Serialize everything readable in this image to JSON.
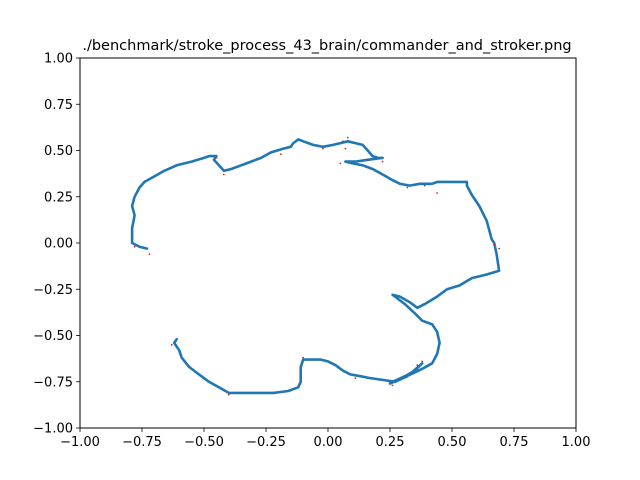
{
  "chart_data": {
    "type": "line",
    "title": "./benchmark/stroke_process_43_brain/commander_and_stroker.png",
    "xlabel": "",
    "ylabel": "",
    "xlim": [
      -1.0,
      1.0
    ],
    "ylim": [
      -1.0,
      1.0
    ],
    "xticks": [
      -1.0,
      -0.75,
      -0.5,
      -0.25,
      0.0,
      0.25,
      0.5,
      0.75,
      1.0
    ],
    "yticks": [
      -1.0,
      -0.75,
      -0.5,
      -0.25,
      0.0,
      0.25,
      0.5,
      0.75,
      1.0
    ],
    "xtick_labels": [
      "−1.00",
      "−0.75",
      "−0.50",
      "−0.25",
      "0.00",
      "0.25",
      "0.50",
      "0.75",
      "1.00"
    ],
    "ytick_labels": [
      "−1.00",
      "−0.75",
      "−0.50",
      "−0.25",
      "0.00",
      "0.25",
      "0.50",
      "0.75",
      "1.00"
    ],
    "grid": false,
    "colors": {
      "stroke": "#1f77b4",
      "points": "#d62728"
    },
    "series": [
      {
        "points": [
          [
            -0.73,
            -0.03
          ],
          [
            -0.76,
            -0.02
          ],
          [
            -0.79,
            0.0
          ],
          [
            -0.79,
            0.08
          ],
          [
            -0.78,
            0.15
          ],
          [
            -0.79,
            0.2
          ],
          [
            -0.78,
            0.25
          ],
          [
            -0.76,
            0.3
          ],
          [
            -0.74,
            0.33
          ],
          [
            -0.7,
            0.36
          ],
          [
            -0.66,
            0.39
          ],
          [
            -0.61,
            0.42
          ],
          [
            -0.55,
            0.44
          ],
          [
            -0.5,
            0.46
          ],
          [
            -0.48,
            0.47
          ],
          [
            -0.45,
            0.47
          ],
          [
            -0.46,
            0.45
          ],
          [
            -0.44,
            0.42
          ],
          [
            -0.42,
            0.39
          ],
          [
            -0.39,
            0.4
          ],
          [
            -0.35,
            0.42
          ],
          [
            -0.31,
            0.44
          ],
          [
            -0.27,
            0.46
          ],
          [
            -0.23,
            0.49
          ],
          [
            -0.18,
            0.51
          ],
          [
            -0.15,
            0.52
          ],
          [
            -0.14,
            0.54
          ],
          [
            -0.13,
            0.55
          ],
          [
            -0.12,
            0.56
          ],
          [
            -0.1,
            0.55
          ],
          [
            -0.06,
            0.53
          ],
          [
            -0.02,
            0.52
          ],
          [
            0.02,
            0.53
          ],
          [
            0.05,
            0.54
          ],
          [
            0.08,
            0.55
          ],
          [
            0.11,
            0.54
          ],
          [
            0.14,
            0.53
          ],
          [
            0.16,
            0.5
          ],
          [
            0.18,
            0.47
          ],
          [
            0.2,
            0.46
          ],
          [
            0.22,
            0.46
          ],
          [
            0.16,
            0.45
          ],
          [
            0.11,
            0.44
          ],
          [
            0.07,
            0.44
          ],
          [
            0.1,
            0.43
          ],
          [
            0.14,
            0.42
          ],
          [
            0.18,
            0.4
          ],
          [
            0.22,
            0.37
          ],
          [
            0.26,
            0.34
          ],
          [
            0.29,
            0.32
          ],
          [
            0.33,
            0.31
          ],
          [
            0.37,
            0.32
          ],
          [
            0.42,
            0.32
          ],
          [
            0.44,
            0.33
          ],
          [
            0.48,
            0.33
          ],
          [
            0.52,
            0.33
          ],
          [
            0.56,
            0.33
          ],
          [
            0.56,
            0.31
          ],
          [
            0.58,
            0.26
          ],
          [
            0.61,
            0.2
          ],
          [
            0.64,
            0.12
          ],
          [
            0.66,
            0.02
          ],
          [
            0.67,
            0.0
          ],
          [
            0.68,
            -0.06
          ],
          [
            0.69,
            -0.15
          ],
          [
            0.64,
            -0.17
          ],
          [
            0.58,
            -0.19
          ],
          [
            0.53,
            -0.23
          ],
          [
            0.48,
            -0.25
          ],
          [
            0.44,
            -0.29
          ],
          [
            0.39,
            -0.33
          ],
          [
            0.36,
            -0.35
          ],
          [
            0.33,
            -0.32
          ],
          [
            0.29,
            -0.29
          ],
          [
            0.26,
            -0.28
          ],
          [
            0.27,
            -0.29
          ],
          [
            0.31,
            -0.33
          ],
          [
            0.35,
            -0.38
          ],
          [
            0.38,
            -0.42
          ],
          [
            0.42,
            -0.44
          ],
          [
            0.44,
            -0.48
          ],
          [
            0.45,
            -0.54
          ],
          [
            0.44,
            -0.6
          ],
          [
            0.42,
            -0.65
          ],
          [
            0.38,
            -0.68
          ],
          [
            0.35,
            -0.7
          ],
          [
            0.3,
            -0.73
          ],
          [
            0.25,
            -0.76
          ],
          [
            0.26,
            -0.75
          ],
          [
            0.31,
            -0.72
          ],
          [
            0.35,
            -0.69
          ],
          [
            0.38,
            -0.65
          ],
          [
            0.32,
            -0.72
          ],
          [
            0.27,
            -0.75
          ],
          [
            0.22,
            -0.74
          ],
          [
            0.17,
            -0.73
          ],
          [
            0.13,
            -0.72
          ],
          [
            0.09,
            -0.71
          ],
          [
            0.06,
            -0.69
          ],
          [
            0.03,
            -0.66
          ],
          [
            0.0,
            -0.64
          ],
          [
            -0.03,
            -0.63
          ],
          [
            -0.06,
            -0.63
          ],
          [
            -0.1,
            -0.63
          ],
          [
            -0.11,
            -0.67
          ],
          [
            -0.11,
            -0.71
          ],
          [
            -0.11,
            -0.75
          ],
          [
            -0.12,
            -0.78
          ],
          [
            -0.16,
            -0.8
          ],
          [
            -0.22,
            -0.81
          ],
          [
            -0.3,
            -0.81
          ],
          [
            -0.4,
            -0.81
          ],
          [
            -0.44,
            -0.78
          ],
          [
            -0.48,
            -0.75
          ],
          [
            -0.52,
            -0.71
          ],
          [
            -0.56,
            -0.67
          ],
          [
            -0.59,
            -0.62
          ],
          [
            -0.6,
            -0.58
          ],
          [
            -0.62,
            -0.54
          ],
          [
            -0.61,
            -0.52
          ]
        ]
      }
    ],
    "markers": [
      [
        -0.72,
        -0.06
      ],
      [
        -0.78,
        -0.02
      ],
      [
        -0.42,
        0.37
      ],
      [
        -0.19,
        0.48
      ],
      [
        -0.02,
        0.51
      ],
      [
        0.06,
        0.55
      ],
      [
        0.08,
        0.57
      ],
      [
        0.07,
        0.51
      ],
      [
        0.16,
        0.45
      ],
      [
        0.22,
        0.44
      ],
      [
        0.32,
        0.3
      ],
      [
        0.39,
        0.31
      ],
      [
        0.44,
        0.27
      ],
      [
        0.67,
        -0.01
      ],
      [
        0.69,
        -0.03
      ],
      [
        0.38,
        -0.64
      ],
      [
        0.36,
        -0.66
      ],
      [
        0.11,
        -0.73
      ],
      [
        -0.1,
        -0.62
      ],
      [
        -0.63,
        -0.55
      ],
      [
        -0.4,
        -0.82
      ],
      [
        0.26,
        -0.77
      ],
      [
        0.05,
        0.43
      ],
      [
        -0.45,
        0.46
      ]
    ]
  }
}
